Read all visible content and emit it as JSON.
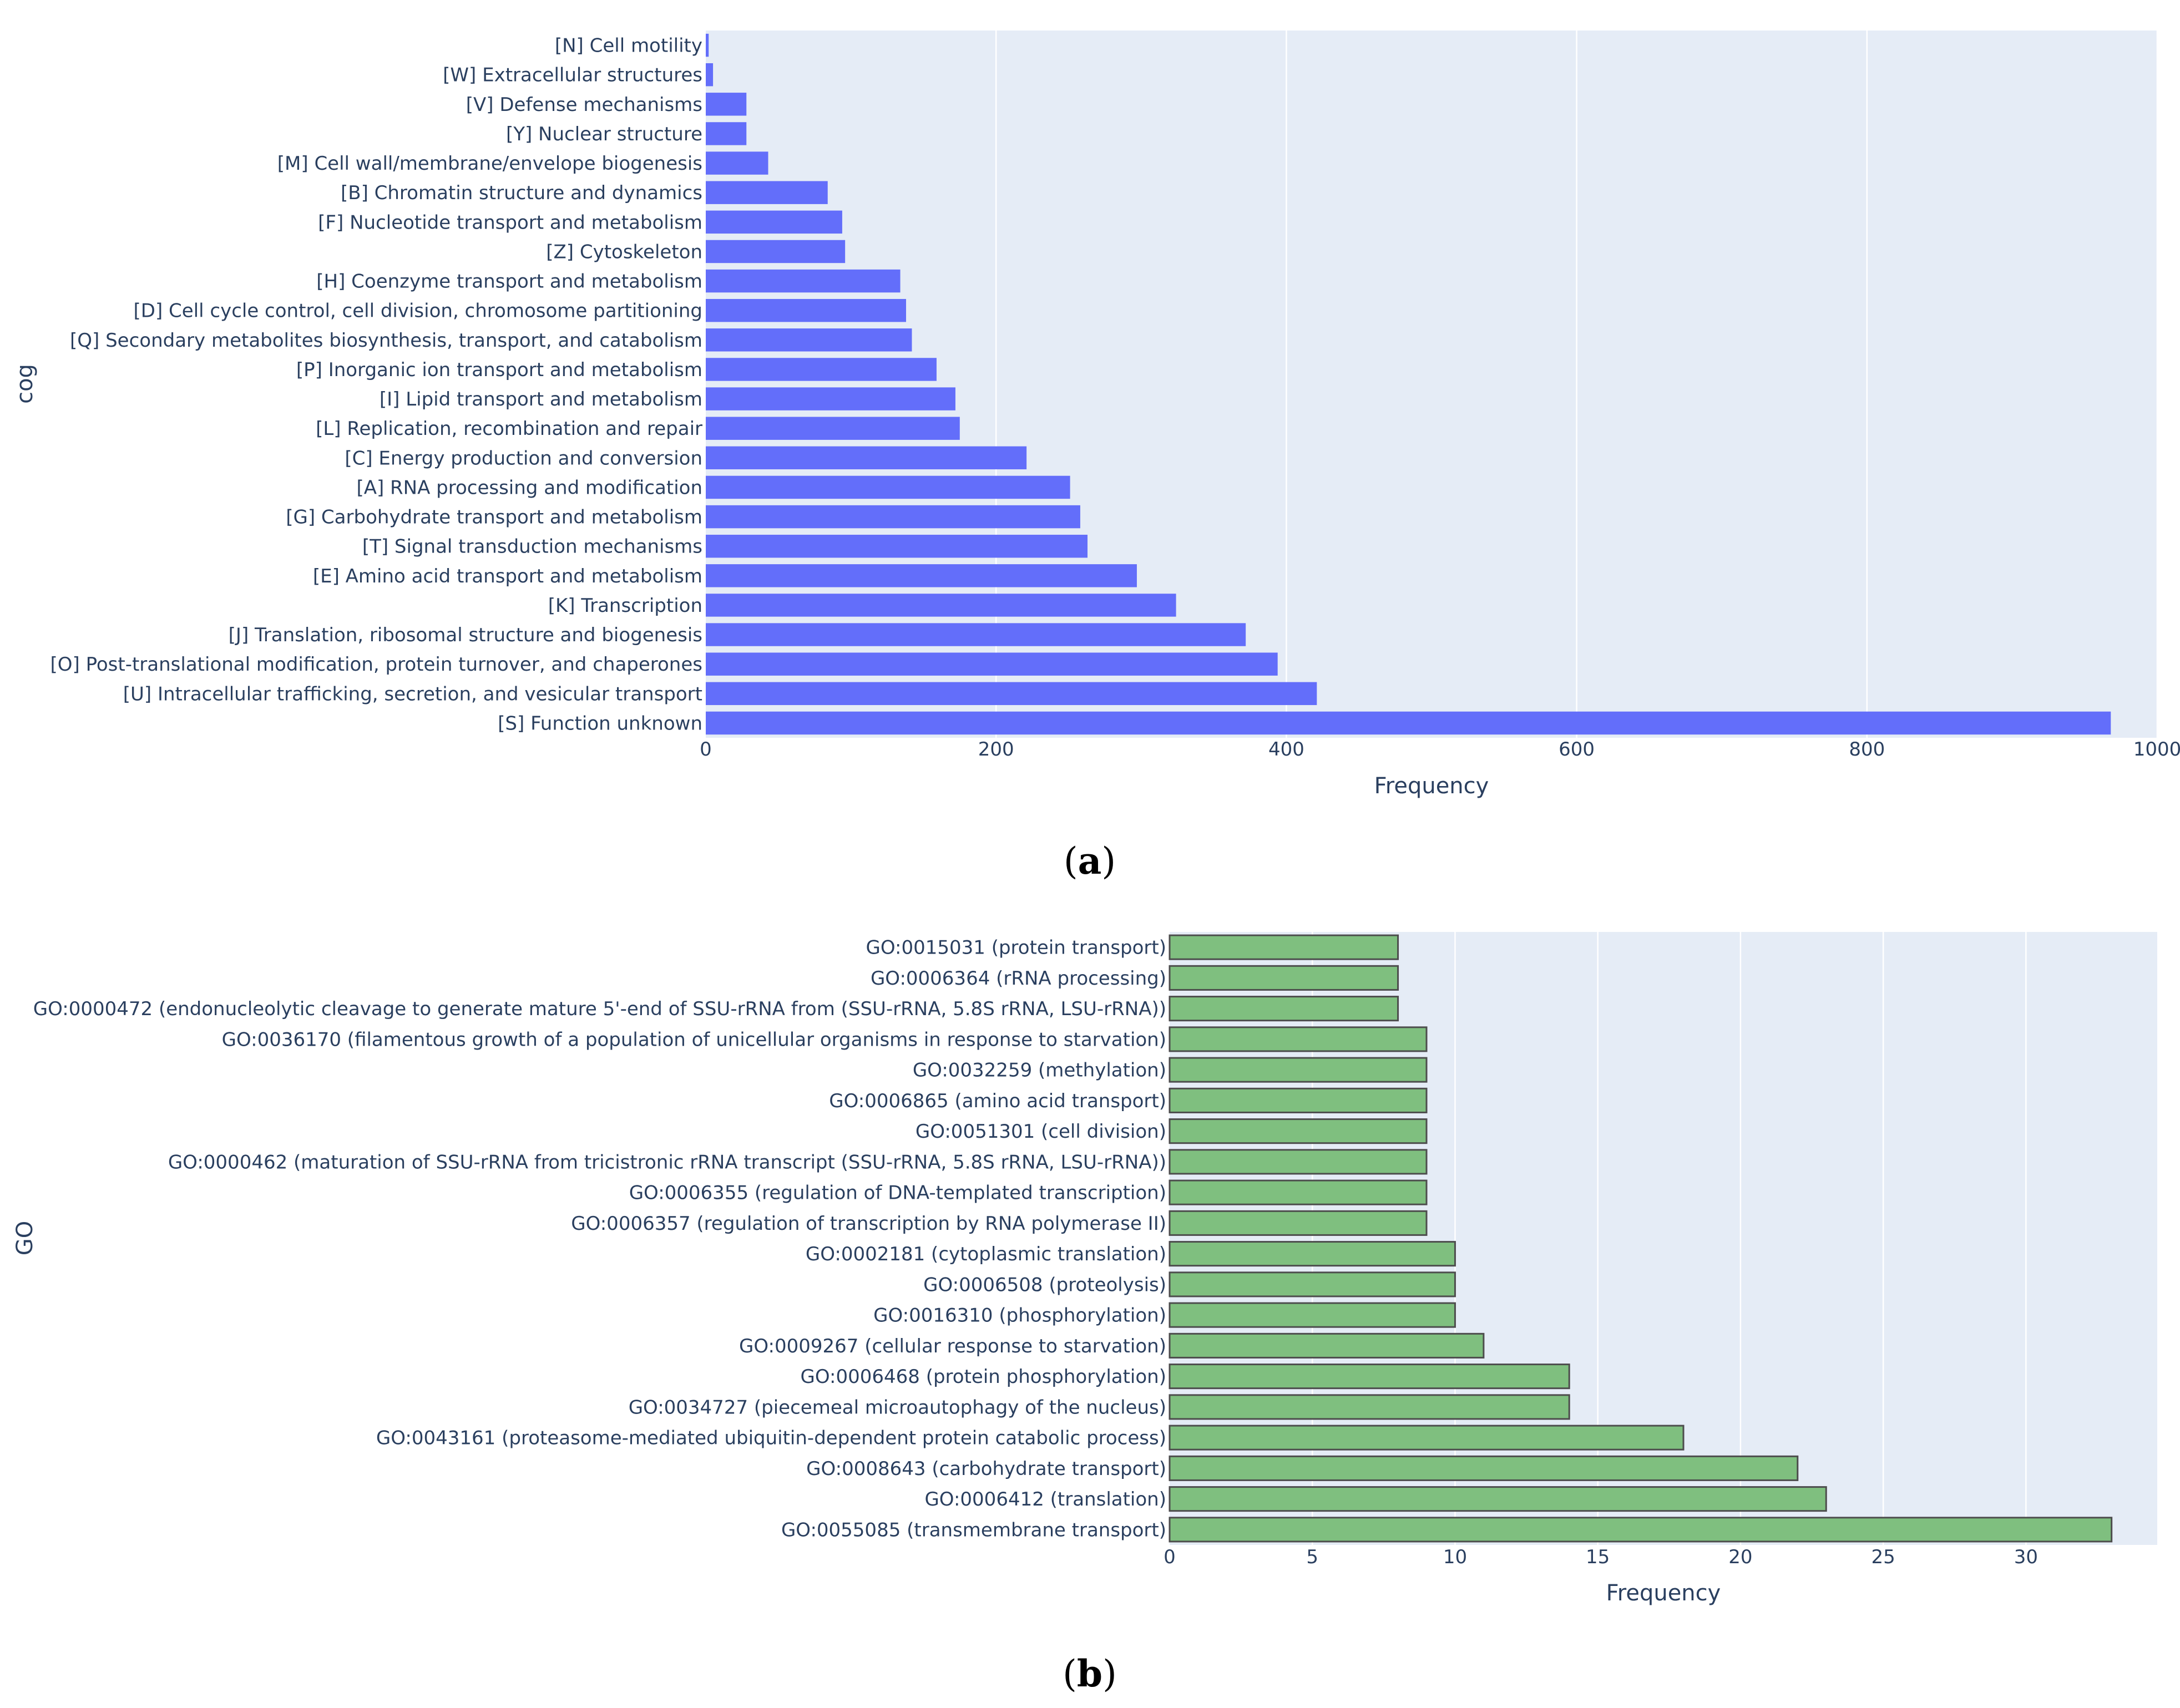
{
  "chart_data": [
    {
      "panel": "(a)",
      "type": "bar",
      "orientation": "horizontal",
      "ylabel": "cog",
      "xlabel": "Frequency",
      "xlim": [
        0,
        1000
      ],
      "xticks": [
        0,
        200,
        400,
        600,
        800,
        1000
      ],
      "grid": true,
      "bar_color": "#636efa",
      "bar_outline": false,
      "categories": [
        "[N] Cell motility",
        "[W] Extracellular structures",
        "[V] Defense mechanisms",
        "[Y] Nuclear structure",
        "[M] Cell wall/membrane/envelope biogenesis",
        "[B] Chromatin structure and dynamics",
        "[F] Nucleotide transport and metabolism",
        "[Z] Cytoskeleton",
        "[H] Coenzyme transport and metabolism",
        "[D] Cell cycle control, cell division, chromosome partitioning",
        "[Q] Secondary metabolites biosynthesis, transport, and catabolism",
        "[P] Inorganic ion transport and metabolism",
        "[I] Lipid transport and metabolism",
        "[L] Replication, recombination and repair",
        "[C] Energy production and conversion",
        "[A] RNA processing and modification",
        "[G] Carbohydrate transport and metabolism",
        "[T] Signal transduction mechanisms",
        "[E] Amino acid transport and metabolism",
        "[K] Transcription",
        "[J] Translation, ribosomal structure and biogenesis",
        "[O] Post-translational modification, protein turnover, and chaperones",
        "[U] Intracellular trafficking, secretion, and vesicular transport",
        "[S] Function unknown"
      ],
      "values": [
        2,
        5,
        28,
        28,
        43,
        84,
        94,
        96,
        134,
        138,
        142,
        159,
        172,
        175,
        221,
        251,
        258,
        263,
        297,
        324,
        372,
        394,
        421,
        968
      ]
    },
    {
      "panel": "(b)",
      "type": "bar",
      "orientation": "horizontal",
      "ylabel": "GO",
      "xlabel": "Frequency",
      "xlim": [
        0,
        34.6
      ],
      "xticks": [
        0,
        5,
        10,
        15,
        20,
        25,
        30
      ],
      "grid": true,
      "bar_color": "#7fbf7f",
      "bar_outline": true,
      "categories": [
        "GO:0015031 (protein transport)",
        "GO:0006364 (rRNA processing)",
        "GO:0000472 (endonucleolytic cleavage to generate mature 5'-end of SSU-rRNA from (SSU-rRNA, 5.8S rRNA, LSU-rRNA))",
        "GO:0036170 (filamentous growth of a population of unicellular organisms in response to starvation)",
        "GO:0032259 (methylation)",
        "GO:0006865 (amino acid transport)",
        "GO:0051301 (cell division)",
        "GO:0000462 (maturation of SSU-rRNA from tricistronic rRNA transcript (SSU-rRNA, 5.8S rRNA, LSU-rRNA))",
        "GO:0006355 (regulation of DNA-templated transcription)",
        "GO:0006357 (regulation of transcription by RNA polymerase II)",
        "GO:0002181 (cytoplasmic translation)",
        "GO:0006508 (proteolysis)",
        "GO:0016310 (phosphorylation)",
        "GO:0009267 (cellular response to starvation)",
        "GO:0006468 (protein phosphorylation)",
        "GO:0034727 (piecemeal microautophagy of the nucleus)",
        "GO:0043161 (proteasome-mediated ubiquitin-dependent protein catabolic process)",
        "GO:0008643 (carbohydrate transport)",
        "GO:0006412 (translation)",
        "GO:0055085 (transmembrane transport)"
      ],
      "values": [
        8,
        8,
        8,
        9,
        9,
        9,
        9,
        9,
        9,
        9,
        10,
        10,
        10,
        11,
        14,
        14,
        18,
        22,
        23,
        33
      ]
    }
  ]
}
